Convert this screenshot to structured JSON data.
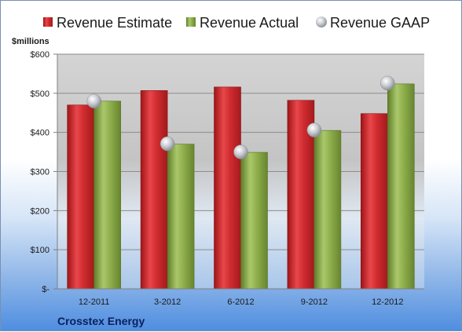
{
  "chart_data": {
    "type": "bar",
    "categories": [
      "12-2011",
      "3-2012",
      "6-2012",
      "9-2012",
      "12-2012"
    ],
    "series": [
      {
        "name": "Revenue Estimate",
        "kind": "bar",
        "color": "#c8262b",
        "values": [
          470,
          507,
          516,
          482,
          448
        ]
      },
      {
        "name": "Revenue Actual",
        "kind": "bar",
        "color": "#8aaa46",
        "values": [
          480,
          370,
          349,
          405,
          524
        ]
      },
      {
        "name": "Revenue GAAP",
        "kind": "marker",
        "color": "#b9bcc2",
        "values": [
          480,
          371,
          350,
          406,
          526
        ]
      }
    ],
    "ylabel": "$millions",
    "ylim": [
      0,
      600
    ],
    "yticks": [
      0,
      100,
      200,
      300,
      400,
      500,
      600
    ],
    "ytick_labels": [
      "$-",
      "$100",
      "$200",
      "$300",
      "$400",
      "$500",
      "$600"
    ],
    "grid": true,
    "legend": "top"
  },
  "company": "Crosstex Energy"
}
